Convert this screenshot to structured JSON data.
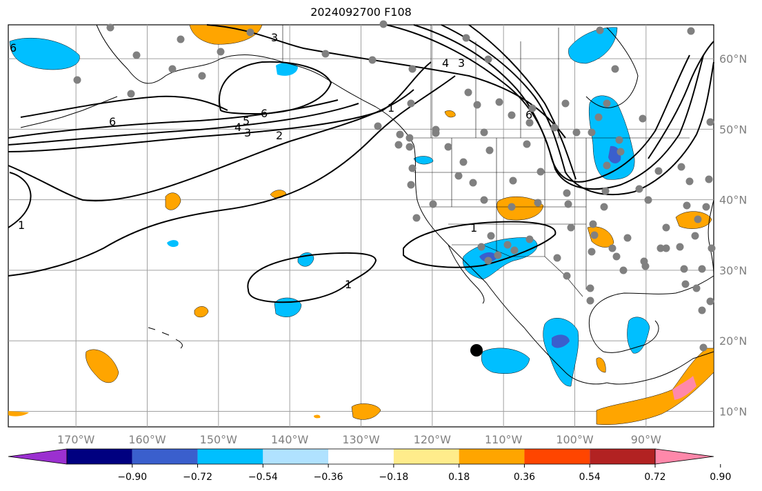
{
  "title": "2024092700 F108",
  "map": {
    "lat_labels": [
      "60°N",
      "50°N",
      "40°N",
      "30°N",
      "20°N",
      "10°N"
    ],
    "lat_values": [
      60,
      50,
      40,
      30,
      20,
      10
    ],
    "lon_labels": [
      "170°W",
      "160°W",
      "150°W",
      "140°W",
      "130°W",
      "120°W",
      "110°W",
      "100°W",
      "90°W"
    ],
    "lon_values": [
      -170,
      -160,
      -150,
      -140,
      -130,
      -120,
      -110,
      -100,
      -90
    ],
    "contour_labels": [
      "6",
      "6",
      "3",
      "4",
      "3",
      "6",
      "5",
      "4",
      "3",
      "2",
      "1",
      "6",
      "1",
      "1",
      "1"
    ],
    "ocean_color": "#ffffff",
    "land_line_color": "#000000",
    "grid_color": "#a0a0a0",
    "station_marker_color": "#808080"
  },
  "colorbar": {
    "colors": [
      "#9b30d0",
      "#000080",
      "#3a5fcd",
      "#00bfff",
      "#b0e2ff",
      "#ffffff",
      "#ffec8b",
      "#ffa500",
      "#ff4500",
      "#b22222",
      "#ff88aa"
    ],
    "tick_labels": [
      "−0.90",
      "−0.72",
      "−0.54",
      "−0.36",
      "−0.18",
      "0.18",
      "0.36",
      "0.54",
      "0.72",
      "0.90"
    ]
  }
}
